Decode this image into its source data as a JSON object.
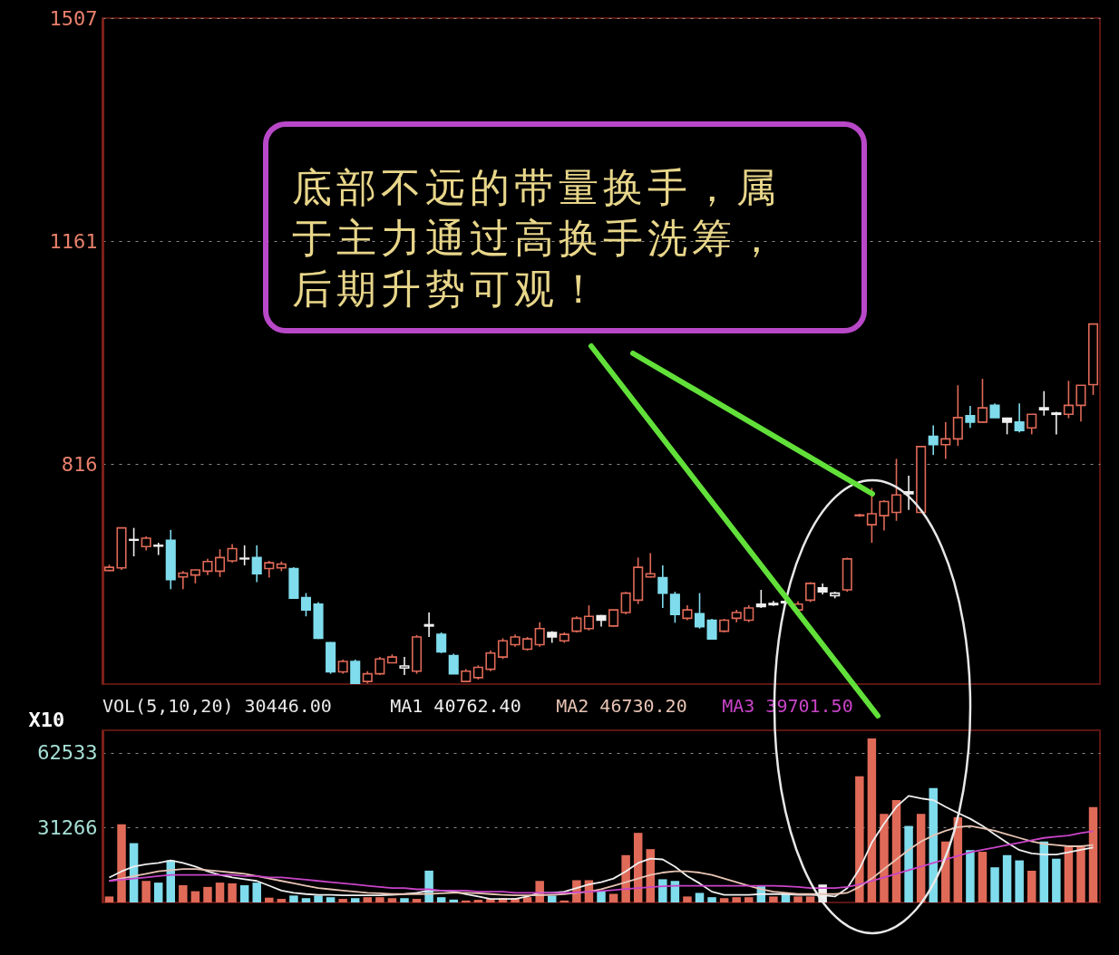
{
  "chart_data": [
    {
      "type": "candlestick",
      "categories": [
        null,
        null,
        null,
        null,
        null,
        null,
        null,
        null,
        null,
        null,
        null,
        null,
        null,
        null,
        null,
        null,
        null,
        null,
        null,
        null,
        null,
        null,
        null,
        null,
        null,
        null,
        null,
        null,
        null,
        null,
        null,
        null,
        null,
        null,
        null,
        null,
        null,
        null,
        null,
        null,
        null,
        null,
        null,
        null,
        null,
        null,
        null,
        null,
        null,
        null,
        null,
        null,
        null,
        null,
        null,
        null,
        null,
        null,
        null,
        null,
        null,
        null,
        null,
        null,
        null,
        null,
        null,
        null,
        null,
        null,
        null,
        null,
        null,
        null,
        null,
        null,
        null,
        null,
        null,
        null,
        null
      ],
      "ohlc": [
        [
          651,
          660,
          650,
          656
        ],
        [
          655,
          717,
          652,
          717
        ],
        [
          699,
          717,
          673,
          698
        ],
        [
          688,
          704,
          682,
          701
        ],
        [
          689,
          694,
          675,
          690
        ],
        [
          698,
          714,
          622,
          637
        ],
        [
          641,
          650,
          622,
          647
        ],
        [
          644,
          652,
          631,
          652
        ],
        [
          650,
          669,
          644,
          665
        ],
        [
          650,
          684,
          641,
          671
        ],
        [
          666,
          692,
          663,
          685
        ],
        [
          669,
          690,
          659,
          670
        ],
        [
          671,
          690,
          633,
          646
        ],
        [
          654,
          666,
          640,
          663
        ],
        [
          655,
          665,
          650,
          661
        ],
        [
          654,
          656,
          608,
          608
        ],
        [
          609,
          616,
          580,
          590
        ],
        [
          599,
          602,
          545,
          546
        ],
        [
          539,
          540,
          491,
          494
        ],
        [
          494,
          513,
          491,
          510
        ],
        [
          510,
          513,
          475,
          476
        ],
        [
          479,
          495,
          476,
          491
        ],
        [
          491,
          517,
          489,
          514
        ],
        [
          508,
          521,
          508,
          517
        ],
        [
          500,
          517,
          489,
          503
        ],
        [
          495,
          551,
          491,
          548
        ],
        [
          567,
          586,
          548,
          565
        ],
        [
          552,
          555,
          523,
          525
        ],
        [
          519,
          522,
          491,
          491
        ],
        [
          479,
          498,
          479,
          495
        ],
        [
          485,
          504,
          482,
          501
        ],
        [
          498,
          527,
          495,
          523
        ],
        [
          517,
          546,
          514,
          542
        ],
        [
          536,
          552,
          533,
          548
        ],
        [
          529,
          548,
          527,
          545
        ],
        [
          536,
          571,
          533,
          561
        ],
        [
          555,
          557,
          539,
          548
        ],
        [
          542,
          555,
          539,
          552
        ],
        [
          557,
          580,
          555,
          577
        ],
        [
          561,
          597,
          558,
          580
        ],
        [
          581,
          582,
          564,
          574
        ],
        [
          565,
          590,
          564,
          590
        ],
        [
          586,
          618,
          583,
          616
        ],
        [
          605,
          671,
          599,
          656
        ],
        [
          641,
          678,
          640,
          646
        ],
        [
          640,
          659,
          593,
          616
        ],
        [
          614,
          618,
          570,
          583
        ],
        [
          577,
          597,
          574,
          590
        ],
        [
          584,
          616,
          561,
          564
        ],
        [
          574,
          576,
          544,
          545
        ],
        [
          557,
          576,
          555,
          574
        ],
        [
          577,
          590,
          571,
          586
        ],
        [
          574,
          597,
          571,
          593
        ],
        [
          599,
          621,
          593,
          595
        ],
        [
          598,
          604,
          596,
          600
        ],
        [
          601,
          606,
          597,
          603
        ],
        [
          590,
          603,
          589,
          599
        ],
        [
          605,
          633,
          602,
          631
        ],
        [
          624,
          631,
          614,
          618
        ],
        [
          612,
          618,
          608,
          616
        ],
        [
          621,
          671,
          618,
          669
        ],
        [
          736,
          739,
          734,
          737
        ],
        [
          722,
          779,
          694,
          739
        ],
        [
          736,
          760,
          713,
          758
        ],
        [
          741,
          824,
          728,
          768
        ],
        [
          773,
          798,
          745,
          770
        ],
        [
          741,
          843,
          740,
          843
        ],
        [
          859,
          876,
          830,
          846
        ],
        [
          846,
          881,
          824,
          855
        ],
        [
          855,
          938,
          844,
          888
        ],
        [
          891,
          906,
          872,
          881
        ],
        [
          881,
          948,
          880,
          903
        ],
        [
          907,
          910,
          888,
          888
        ],
        [
          887,
          888,
          862,
          881
        ],
        [
          881,
          910,
          865,
          868
        ],
        [
          872,
          893,
          862,
          893
        ],
        [
          903,
          929,
          891,
          900
        ],
        [
          895,
          897,
          862,
          893
        ],
        [
          893,
          945,
          887,
          907
        ],
        [
          907,
          938,
          882,
          938
        ],
        [
          939,
          1033,
          923,
          1033
        ]
      ],
      "colors": [
        "#e06a58",
        "#e06a58",
        "#f0f0f0",
        "#e06a58",
        "#f0f0f0",
        "#7fdcec",
        "#e06a58",
        "#e06a58",
        "#e06a58",
        "#e06a58",
        "#e06a58",
        "#f0f0f0",
        "#7fdcec",
        "#e06a58",
        "#e06a58",
        "#7fdcec",
        "#7fdcec",
        "#7fdcec",
        "#7fdcec",
        "#e06a58",
        "#7fdcec",
        "#e06a58",
        "#e06a58",
        "#e06a58",
        "#f0f0f0",
        "#e06a58",
        "#f0f0f0",
        "#7fdcec",
        "#7fdcec",
        "#e06a58",
        "#e06a58",
        "#e06a58",
        "#e06a58",
        "#e06a58",
        "#e06a58",
        "#e06a58",
        "#f0f0f0",
        "#e06a58",
        "#e06a58",
        "#e06a58",
        "#f0f0f0",
        "#e06a58",
        "#e06a58",
        "#e06a58",
        "#e06a58",
        "#7fdcec",
        "#7fdcec",
        "#e06a58",
        "#7fdcec",
        "#7fdcec",
        "#e06a58",
        "#e06a58",
        "#e06a58",
        "#f0f0f0",
        "#f0f0f0",
        "#f0f0f0",
        "#e06a58",
        "#e06a58",
        "#f0f0f0",
        "#f0f0f0",
        "#e06a58",
        "#e06a58",
        "#e06a58",
        "#e06a58",
        "#e06a58",
        "#f0f0f0",
        "#e06a58",
        "#7fdcec",
        "#e06a58",
        "#e06a58",
        "#7fdcec",
        "#e06a58",
        "#7fdcec",
        "#f0f0f0",
        "#7fdcec",
        "#e06a58",
        "#f0f0f0",
        "#f0f0f0",
        "#e06a58",
        "#e06a58",
        "#e06a58"
      ],
      "ylim": [
        475,
        1507
      ],
      "yticks": [
        816,
        1161,
        1507
      ],
      "grid": "y",
      "tick_labels": "y",
      "annotations": [
        "底部不远的带量换手，属于主力通过高换手洗筹，后期升势可观！"
      ]
    },
    {
      "type": "bar",
      "title": "VOL(5,10,20)",
      "ylabel": "X10",
      "categories": [
        null,
        null,
        null,
        null,
        null,
        null,
        null,
        null,
        null,
        null,
        null,
        null,
        null,
        null,
        null,
        null,
        null,
        null,
        null,
        null,
        null,
        null,
        null,
        null,
        null,
        null,
        null,
        null,
        null,
        null,
        null,
        null,
        null,
        null,
        null,
        null,
        null,
        null,
        null,
        null,
        null,
        null,
        null,
        null,
        null,
        null,
        null,
        null,
        null,
        null,
        null,
        null,
        null,
        null,
        null,
        null,
        null,
        null,
        null,
        null,
        null,
        null,
        null,
        null,
        null,
        null,
        null,
        null,
        null,
        null,
        null,
        null,
        null,
        null,
        null,
        null,
        null,
        null,
        null,
        null,
        null
      ],
      "series": [
        {
          "type": "bar",
          "colors": [
            "#e06a58",
            "#e06a58",
            "#7fdcec",
            "#e06a58",
            "#7fdcec",
            "#7fdcec",
            "#e06a58",
            "#e06a58",
            "#e06a58",
            "#e06a58",
            "#e06a58",
            "#7fdcec",
            "#7fdcec",
            "#e06a58",
            "#e06a58",
            "#7fdcec",
            "#7fdcec",
            "#7fdcec",
            "#7fdcec",
            "#e06a58",
            "#7fdcec",
            "#e06a58",
            "#e06a58",
            "#e06a58",
            "#7fdcec",
            "#e06a58",
            "#7fdcec",
            "#7fdcec",
            "#7fdcec",
            "#e06a58",
            "#e06a58",
            "#e06a58",
            "#e06a58",
            "#e06a58",
            "#e06a58",
            "#e06a58",
            "#7fdcec",
            "#e06a58",
            "#e06a58",
            "#e06a58",
            "#7fdcec",
            "#e06a58",
            "#e06a58",
            "#e06a58",
            "#e06a58",
            "#7fdcec",
            "#7fdcec",
            "#e06a58",
            "#7fdcec",
            "#7fdcec",
            "#e06a58",
            "#e06a58",
            "#e06a58",
            "#7fdcec",
            "#e06a58",
            "#7fdcec",
            "#e06a58",
            "#e06a58",
            "#f0f0f0",
            "#e06a58",
            "#e06a58",
            "#e06a58",
            "#e06a58",
            "#e06a58",
            "#e06a58",
            "#7fdcec",
            "#e06a58",
            "#7fdcec",
            "#e06a58",
            "#e06a58",
            "#7fdcec",
            "#e06a58",
            "#7fdcec",
            "#7fdcec",
            "#7fdcec",
            "#e06a58",
            "#7fdcec",
            "#7fdcec",
            "#e06a58",
            "#e06a58",
            "#e06a58"
          ],
          "values": [
            2500,
            32700,
            24800,
            9000,
            8300,
            17600,
            7200,
            4700,
            6500,
            8300,
            8000,
            7200,
            8300,
            2000,
            1500,
            2900,
            1800,
            2900,
            2200,
            1500,
            1800,
            2200,
            2200,
            1800,
            1800,
            1500,
            13300,
            2200,
            1200,
            800,
            1100,
            1500,
            1800,
            1800,
            2200,
            9000,
            2900,
            800,
            9300,
            9300,
            4700,
            3600,
            19800,
            29100,
            22300,
            9700,
            9000,
            2500,
            4000,
            2200,
            1800,
            2200,
            2200,
            6800,
            2500,
            3600,
            2500,
            2500,
            7500,
            null,
            null,
            52800,
            68600,
            37000,
            42800,
            32000,
            37000,
            47800,
            25500,
            35600,
            21900,
            21200,
            14700,
            19800,
            17600,
            13300,
            25500,
            18300,
            23400,
            23400,
            39900
          ]
        },
        {
          "type": "line",
          "name": "MA1",
          "color": "#eeeeee",
          "values": [
            10400,
            13000,
            15000,
            16000,
            16500,
            17600,
            16500,
            15000,
            13000,
            11500,
            10500,
            9700,
            9000,
            7000,
            5000,
            4000,
            3500,
            3200,
            3200,
            3000,
            3000,
            3000,
            3000,
            3200,
            3500,
            4000,
            5000,
            5000,
            4500,
            3500,
            2500,
            1500,
            1500,
            1500,
            2500,
            4000,
            4000,
            4500,
            6000,
            7500,
            8500,
            10000,
            13000,
            16500,
            18300,
            18000,
            15000,
            11000,
            8000,
            4500,
            3200,
            3200,
            3200,
            3500,
            3500,
            3500,
            3200,
            3200,
            3000,
            2500,
            6000,
            14000,
            25000,
            33000,
            40000,
            44600,
            43500,
            42800,
            40000,
            37400,
            35000,
            32000,
            28400,
            25000,
            21900,
            20500,
            20000,
            20000,
            21000,
            22000,
            23000
          ]
        },
        {
          "type": "line",
          "name": "MA2",
          "color": "#e8c4b4",
          "values": [
            9000,
            10000,
            11000,
            12000,
            13000,
            13500,
            14000,
            14000,
            13500,
            13000,
            12500,
            12000,
            11000,
            10000,
            9000,
            8000,
            7000,
            6000,
            5500,
            5000,
            4500,
            4000,
            3800,
            3500,
            3500,
            3500,
            3600,
            3800,
            4000,
            4000,
            3800,
            3500,
            3200,
            3000,
            3000,
            3000,
            3200,
            3500,
            4000,
            4500,
            5500,
            7000,
            8500,
            10000,
            11500,
            12500,
            13000,
            13000,
            12500,
            11500,
            10000,
            8500,
            7000,
            5500,
            4500,
            4000,
            3500,
            3500,
            3500,
            3500,
            4000,
            6500,
            10000,
            14000,
            18000,
            22000,
            25500,
            28000,
            30000,
            31500,
            32000,
            31000,
            30000,
            28500,
            27000,
            25500,
            24500,
            24000,
            23500,
            23500,
            24000
          ]
        },
        {
          "type": "line",
          "name": "MA3",
          "color": "#c844c8",
          "values": [
            9000,
            9500,
            10000,
            10500,
            11000,
            11500,
            11500,
            11500,
            11500,
            11500,
            11500,
            11000,
            11000,
            10500,
            10500,
            10000,
            9500,
            9000,
            8500,
            8000,
            7500,
            7000,
            6500,
            6000,
            6000,
            5500,
            5500,
            5000,
            5000,
            5000,
            4500,
            4500,
            4500,
            4000,
            4000,
            4000,
            4000,
            4000,
            4200,
            4500,
            4800,
            5200,
            5600,
            6000,
            6400,
            6800,
            7000,
            7000,
            7000,
            7000,
            7000,
            7000,
            7000,
            7000,
            7000,
            6800,
            6500,
            6000,
            6000,
            6000,
            6500,
            7500,
            9000,
            10500,
            12000,
            13500,
            15000,
            16500,
            18000,
            19500,
            21000,
            22000,
            23000,
            24000,
            25000,
            26000,
            27000,
            27500,
            28000,
            29000,
            29800
          ]
        }
      ],
      "annotations": [
        "30446.00",
        "40762.40",
        "46730.20",
        "39701.50"
      ],
      "ylim": [
        0,
        72000
      ],
      "yticks": [
        31266,
        62533
      ],
      "grid": "y",
      "tick_labels": "y"
    }
  ]
}
